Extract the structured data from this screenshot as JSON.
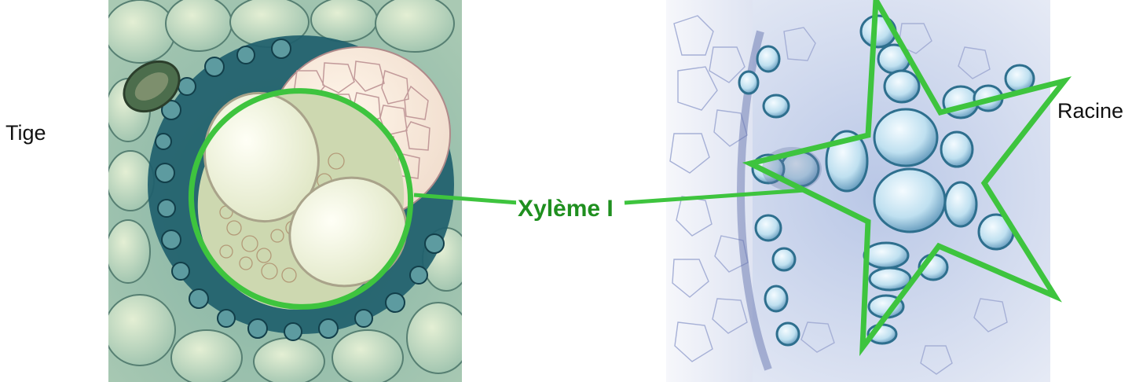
{
  "labels": {
    "stem": "Tige",
    "root": "Racine",
    "xylem": "Xylème I"
  },
  "colors": {
    "highlight": "#3ec43e",
    "xylem_text": "#1f8f1f",
    "stem_stain": "#2f7f86",
    "root_stain": "#6f9fc8"
  },
  "images": {
    "stem": "stem-cross-section-micrograph",
    "root": "root-cross-section-micrograph"
  },
  "annotations": {
    "stem_marker": "ellipse",
    "root_marker": "star"
  }
}
